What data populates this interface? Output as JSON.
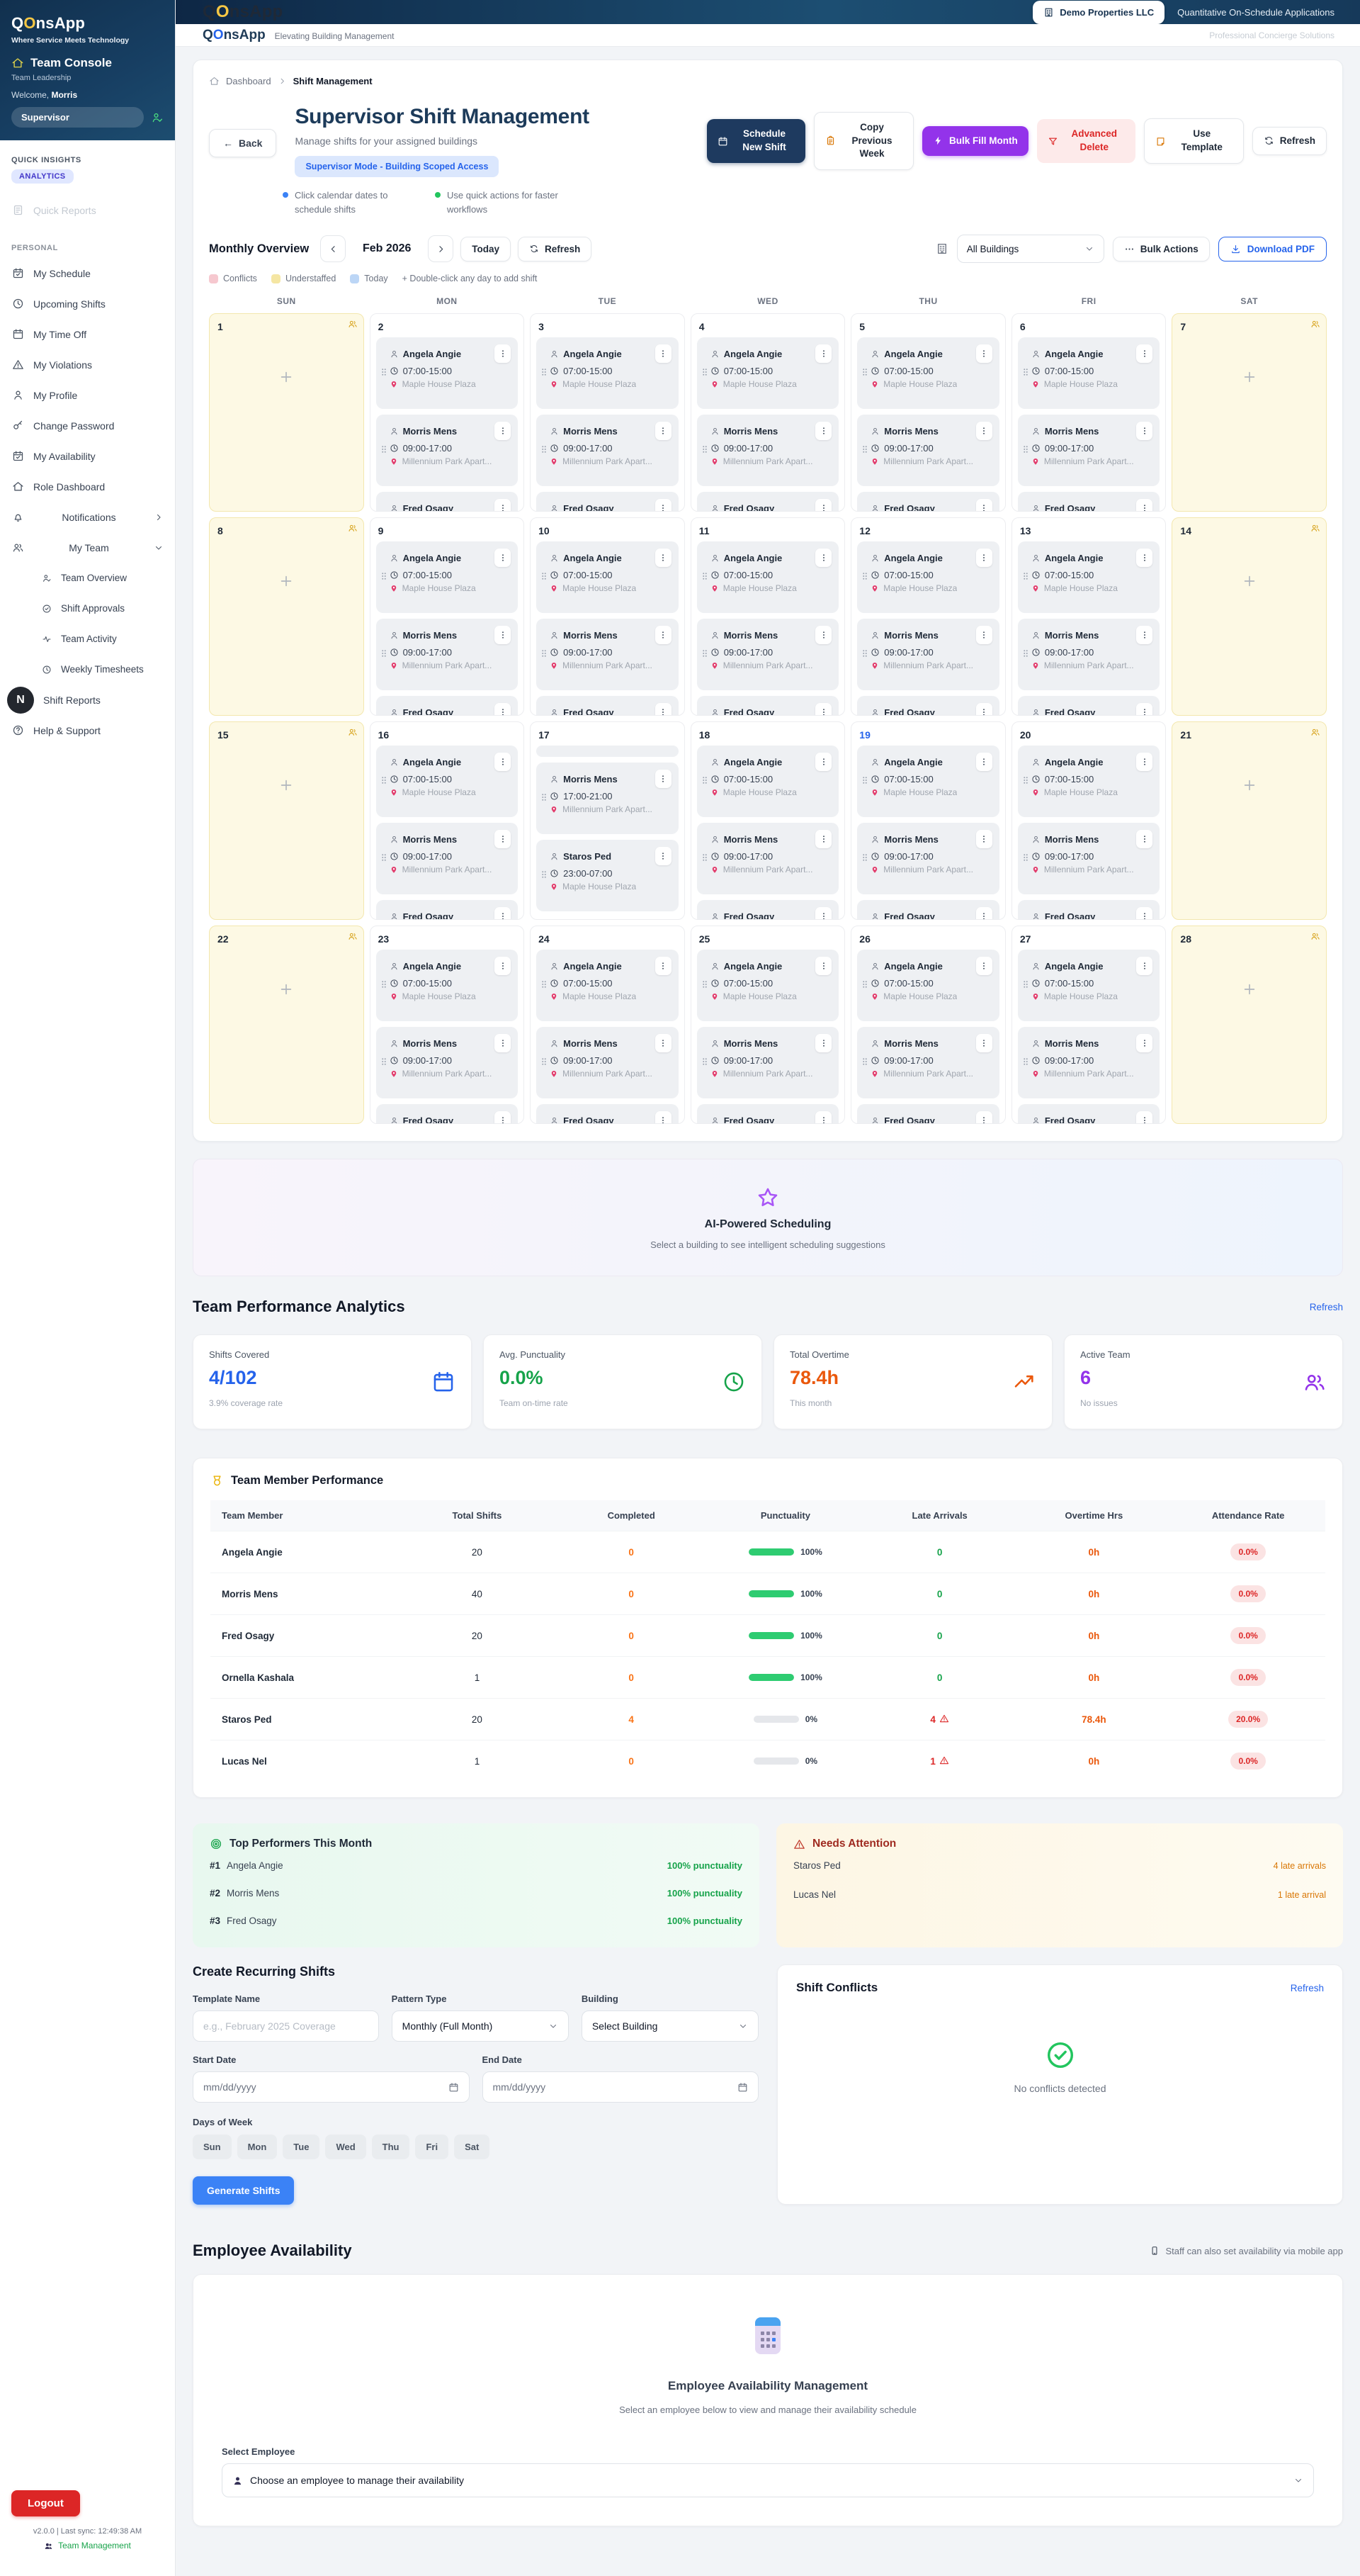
{
  "brand": {
    "q": "Q",
    "o": "O",
    "rest": "nsApp"
  },
  "sidebar": {
    "tagline": "Where Service Meets Technology",
    "console_title": "Team Console",
    "console_subtitle": "Team Leadership",
    "welcome_prefix": "Welcome,",
    "welcome_name": "Morris",
    "role_badge": "Supervisor",
    "quick_insights_label": "QUICK INSIGHTS",
    "analytics_badge": "ANALYTICS",
    "quick_reports": "Quick Reports",
    "personal_label": "PERSONAL",
    "n_badge": "N",
    "items": [
      {
        "icon": "calendar-check",
        "label": "My Schedule"
      },
      {
        "icon": "clock",
        "label": "Upcoming Shifts"
      },
      {
        "icon": "calendar",
        "label": "My Time Off"
      },
      {
        "icon": "warning",
        "label": "My Violations"
      },
      {
        "icon": "person",
        "label": "My Profile"
      },
      {
        "icon": "key",
        "label": "Change Password"
      },
      {
        "icon": "calendar-check",
        "label": "My Availability"
      },
      {
        "icon": "home",
        "label": "Role Dashboard"
      },
      {
        "icon": "bell",
        "label": "Notifications",
        "chevron": "chevron-right",
        "spread": true
      },
      {
        "icon": "people",
        "label": "My Team",
        "chevron": "chevron-down",
        "spread": true,
        "children": [
          {
            "icon": "person-check",
            "label": "Team Overview"
          },
          {
            "icon": "check-circle",
            "label": "Shift Approvals"
          },
          {
            "icon": "activity",
            "label": "Team Activity"
          },
          {
            "icon": "clock",
            "label": "Weekly Timesheets"
          }
        ]
      },
      {
        "icon": "n-badge",
        "label": "Shift Reports",
        "badge": true
      },
      {
        "icon": "question",
        "label": "Help & Support"
      }
    ],
    "logout": "Logout",
    "version": "v2.0.0 | Last sync: 12:49:38 AM",
    "footer_link": "Team Management"
  },
  "topbar": {
    "org_button": "Demo Properties LLC",
    "app_subtitle": "Quantitative On-Schedule Applications"
  },
  "subheader": {
    "tagline": "Elevating Building Management",
    "right": "Professional Concierge Solutions"
  },
  "breadcrumb": {
    "home": "Dashboard",
    "current": "Shift Management"
  },
  "page": {
    "title": "Supervisor Shift Management",
    "subtitle": "Manage shifts for your assigned buildings",
    "mode_badge": "Supervisor Mode - Building Scoped Access",
    "back": "Back",
    "actions": [
      {
        "id": "schedule-new-shift",
        "label": "Schedule New Shift",
        "icon": "calendar",
        "style": "navy"
      },
      {
        "id": "copy-previous-week",
        "label": "Copy Previous Week",
        "icon": "clipboard",
        "style": "white"
      },
      {
        "id": "bulk-fill-month",
        "label": "Bulk Fill Month",
        "icon": "lightning",
        "style": "purple"
      },
      {
        "id": "advanced-delete",
        "label": "Advanced Delete",
        "icon": "funnel",
        "style": "danger"
      },
      {
        "id": "use-template",
        "label": "Use Template",
        "icon": "note",
        "style": "white"
      },
      {
        "id": "refresh",
        "label": "Refresh",
        "icon": "refresh",
        "style": "whitesm"
      }
    ],
    "hints": [
      {
        "dot": "#3b82f6",
        "text": "Click calendar dates to schedule shifts"
      },
      {
        "dot": "#22c55e",
        "text": "Use quick actions for faster workflows"
      }
    ]
  },
  "calendar": {
    "view_label": "Monthly Overview",
    "month": "Feb 2026",
    "today_btn": "Today",
    "refresh_btn": "Refresh",
    "building_filter": "All Buildings",
    "bulk_actions": "Bulk Actions",
    "download_pdf": "Download PDF",
    "legend": [
      {
        "color": "#f6c8cf",
        "label": "Conflicts"
      },
      {
        "color": "#f5e6a3",
        "label": "Understaffed"
      },
      {
        "color": "#bcd6f6",
        "label": "Today"
      }
    ],
    "legend_hint": "+ Double-click any day to add shift",
    "day_headers": [
      "SUN",
      "MON",
      "TUE",
      "WED",
      "THU",
      "FRI",
      "SAT"
    ],
    "shift_templates": {
      "weekday": [
        {
          "name": "Angela Angie",
          "time": "07:00-15:00",
          "location": "Maple House Plaza"
        },
        {
          "name": "Morris Mens",
          "time": "09:00-17:00",
          "location": "Millennium Park Apart..."
        },
        {
          "name": "Fred Osagy"
        }
      ],
      "day17": [
        {
          "sliver": true
        },
        {
          "name": "Morris Mens",
          "time": "17:00-21:00",
          "location": "Millennium Park Apart..."
        },
        {
          "name": "Staros Ped",
          "time": "23:00-07:00",
          "location": "Maple House Plaza"
        }
      ]
    },
    "weeks": [
      [
        {
          "day": "1",
          "type": "understaffed"
        },
        {
          "day": "2",
          "template": "weekday"
        },
        {
          "day": "3",
          "template": "weekday"
        },
        {
          "day": "4",
          "template": "weekday"
        },
        {
          "day": "5",
          "template": "weekday"
        },
        {
          "day": "6",
          "template": "weekday"
        },
        {
          "day": "7",
          "type": "understaffed"
        }
      ],
      [
        {
          "day": "8",
          "type": "understaffed"
        },
        {
          "day": "9",
          "template": "weekday"
        },
        {
          "day": "10",
          "template": "weekday"
        },
        {
          "day": "11",
          "template": "weekday"
        },
        {
          "day": "12",
          "template": "weekday"
        },
        {
          "day": "13",
          "template": "weekday"
        },
        {
          "day": "14",
          "type": "understaffed"
        }
      ],
      [
        {
          "day": "15",
          "type": "understaffed"
        },
        {
          "day": "16",
          "template": "weekday"
        },
        {
          "day": "17",
          "template": "day17"
        },
        {
          "day": "18",
          "template": "weekday"
        },
        {
          "day": "19",
          "template": "weekday",
          "today": true
        },
        {
          "day": "20",
          "template": "weekday"
        },
        {
          "day": "21",
          "type": "understaffed"
        }
      ],
      [
        {
          "day": "22",
          "type": "understaffed"
        },
        {
          "day": "23",
          "template": "weekday"
        },
        {
          "day": "24",
          "template": "weekday"
        },
        {
          "day": "25",
          "template": "weekday"
        },
        {
          "day": "26",
          "template": "weekday"
        },
        {
          "day": "27",
          "template": "weekday"
        },
        {
          "day": "28",
          "type": "understaffed"
        }
      ]
    ]
  },
  "ai_banner": {
    "title": "AI-Powered Scheduling",
    "subtitle": "Select a building to see intelligent scheduling suggestions"
  },
  "analytics": {
    "title": "Team Performance Analytics",
    "refresh": "Refresh",
    "stats": [
      {
        "label": "Shifts Covered",
        "value": "4/102",
        "sub": "3.9% coverage rate",
        "color": "#2563eb",
        "icon": "calendar"
      },
      {
        "label": "Avg. Punctuality",
        "value": "0.0%",
        "sub": "Team on-time rate",
        "color": "#16a34a",
        "icon": "clock"
      },
      {
        "label": "Total Overtime",
        "value": "78.4h",
        "sub": "This month",
        "color": "#ea580c",
        "icon": "trending-up"
      },
      {
        "label": "Active Team",
        "value": "6",
        "sub": "No issues",
        "color": "#9333ea",
        "icon": "people"
      }
    ]
  },
  "performance_table": {
    "title": "Team Member Performance",
    "columns": [
      "Team Member",
      "Total Shifts",
      "Completed",
      "Punctuality",
      "Late Arrivals",
      "Overtime Hrs",
      "Attendance Rate"
    ],
    "rows": [
      {
        "name": "Angela Angie",
        "total": "20",
        "completed": "0",
        "punctuality_pct": 100,
        "punctuality_label": "100%",
        "late": "0",
        "late_warn": false,
        "overtime": "0h",
        "attendance": "0.0%"
      },
      {
        "name": "Morris Mens",
        "total": "40",
        "completed": "0",
        "punctuality_pct": 100,
        "punctuality_label": "100%",
        "late": "0",
        "late_warn": false,
        "overtime": "0h",
        "attendance": "0.0%"
      },
      {
        "name": "Fred Osagy",
        "total": "20",
        "completed": "0",
        "punctuality_pct": 100,
        "punctuality_label": "100%",
        "late": "0",
        "late_warn": false,
        "overtime": "0h",
        "attendance": "0.0%"
      },
      {
        "name": "Ornella Kashala",
        "total": "1",
        "completed": "0",
        "punctuality_pct": 100,
        "punctuality_label": "100%",
        "late": "0",
        "late_warn": false,
        "overtime": "0h",
        "attendance": "0.0%"
      },
      {
        "name": "Staros Ped",
        "total": "20",
        "completed": "4",
        "punctuality_pct": 0,
        "punctuality_label": "0%",
        "late": "4",
        "late_warn": true,
        "overtime": "78.4h",
        "attendance": "20.0%"
      },
      {
        "name": "Lucas Nel",
        "total": "1",
        "completed": "0",
        "punctuality_pct": 0,
        "punctuality_label": "0%",
        "late": "1",
        "late_warn": true,
        "overtime": "0h",
        "attendance": "0.0%"
      }
    ]
  },
  "top_performers": {
    "title": "Top Performers This Month",
    "rows": [
      {
        "rank": "#1",
        "name": "Angela Angie",
        "value": "100% punctuality"
      },
      {
        "rank": "#2",
        "name": "Morris Mens",
        "value": "100% punctuality"
      },
      {
        "rank": "#3",
        "name": "Fred Osagy",
        "value": "100% punctuality"
      }
    ]
  },
  "needs_attention": {
    "title": "Needs Attention",
    "rows": [
      {
        "name": "Staros Ped",
        "value": "4 late arrivals"
      },
      {
        "name": "Lucas Nel",
        "value": "1 late arrival"
      }
    ]
  },
  "recurring": {
    "title": "Create Recurring Shifts",
    "template_name_label": "Template Name",
    "template_name_placeholder": "e.g., February 2025 Coverage",
    "pattern_type_label": "Pattern Type",
    "pattern_type_value": "Monthly (Full Month)",
    "building_label": "Building",
    "building_value": "Select Building",
    "start_date_label": "Start Date",
    "start_date_placeholder": "mm/dd/yyyy",
    "end_date_label": "End Date",
    "end_date_placeholder": "mm/dd/yyyy",
    "days_label": "Days of Week",
    "days": [
      "Sun",
      "Mon",
      "Tue",
      "Wed",
      "Thu",
      "Fri",
      "Sat"
    ],
    "generate": "Generate Shifts"
  },
  "conflicts": {
    "title": "Shift Conflicts",
    "refresh": "Refresh",
    "empty": "No conflicts detected"
  },
  "availability": {
    "title": "Employee Availability",
    "note": "Staff can also set availability via mobile app",
    "card_title": "Employee Availability Management",
    "card_subtitle": "Select an employee below to view and manage their availability schedule",
    "select_label": "Select Employee",
    "select_value": "Choose an employee to manage their availability"
  }
}
